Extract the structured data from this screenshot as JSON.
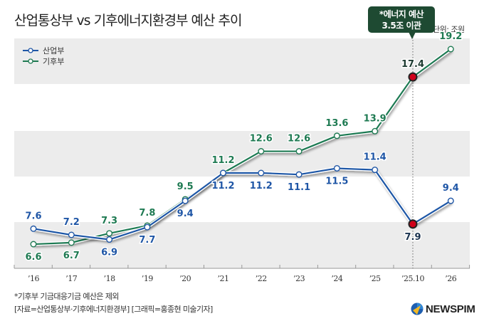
{
  "title": "산업통상부 vs 기후에너지환경부 예산 추이",
  "unit": "단위: 조원",
  "callout": {
    "line1": "*에너지 예산",
    "line2": "3.5조 이관"
  },
  "footnote": "*기후부 기금대응기금 예산은 제외",
  "source": "[자료=산업통상부·기후에너지환경부] [그래픽=홍종현 미술기자]",
  "logo": "NEWSPIM",
  "colors": {
    "sanup": "#1f56a6",
    "gihu": "#1e7a52",
    "highlight": "#d0021b",
    "band": "#ececec",
    "callout": "#1e4a32"
  },
  "chart_data": {
    "type": "line",
    "title": "산업통상부 vs 기후에너지환경부 예산 추이",
    "unit": "조원",
    "categories": [
      "’16",
      "’17",
      "’18",
      "’19",
      "’20",
      "’21",
      "’22",
      "’23",
      "’24",
      "’25",
      "’25.10",
      "’26"
    ],
    "series": [
      {
        "name": "산업부",
        "values": [
          7.6,
          7.2,
          6.9,
          7.7,
          9.4,
          11.2,
          11.2,
          11.1,
          11.5,
          11.4,
          7.9,
          9.4
        ],
        "labels": [
          "7.6",
          "7.2",
          "6.9",
          "7.7",
          "9.4",
          "11.2",
          "11.2",
          "11.1",
          "11.5",
          "11.4",
          "7.9",
          "9.4"
        ]
      },
      {
        "name": "기후부",
        "values": [
          6.6,
          6.7,
          7.3,
          7.8,
          9.5,
          11.2,
          12.6,
          12.6,
          13.6,
          13.9,
          17.4,
          19.2
        ],
        "labels": [
          "6.6",
          "6.7",
          "7.3",
          "7.8",
          "9.5",
          "11.2",
          "12.6",
          "12.6",
          "13.6",
          "13.9",
          "17.4",
          "19.2"
        ]
      }
    ],
    "highlight_index": 10,
    "legend": "top-left",
    "grid": "alternating bands"
  }
}
